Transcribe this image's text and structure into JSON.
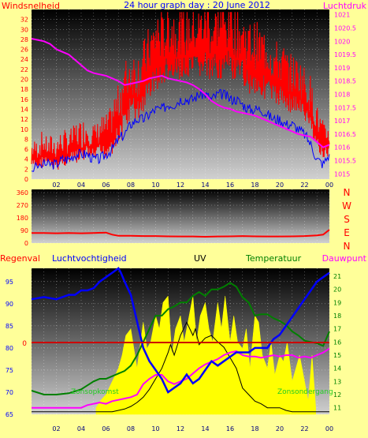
{
  "title": "24 hour graph day : 20 June 2012",
  "colors": {
    "background": "#ffff99",
    "red": "#ff0000",
    "blue": "#0000ff",
    "magenta": "#ff00ff",
    "green": "#008000",
    "yellow": "#ffff00",
    "black": "#000000"
  },
  "x_ticks": [
    "02",
    "04",
    "06",
    "08",
    "10",
    "12",
    "14",
    "16",
    "18",
    "20",
    "22",
    "00"
  ],
  "chart_data": [
    {
      "type": "line",
      "title": "24 hour graph day : 20 June 2012",
      "left_label": "Windsnelheid",
      "right_label": "Luchtdruk",
      "left_ticks": [
        "0",
        "2",
        "4",
        "6",
        "8",
        "10",
        "12",
        "14",
        "16",
        "18",
        "20",
        "22",
        "24",
        "26",
        "28",
        "30",
        "32"
      ],
      "right_ticks": [
        "1015",
        "1015.5",
        "1016",
        "1016.5",
        "1017",
        "1017.5",
        "1018",
        "1018.5",
        "1019",
        "1019.5",
        "1020",
        "1020.5",
        "1021"
      ],
      "ylim_left": [
        0,
        34
      ],
      "ylim_right": [
        1014.8,
        1021.2
      ],
      "xlim": [
        0,
        24
      ],
      "grid": true,
      "series": [
        {
          "color_key": "red",
          "axis": "left",
          "x": [
            0,
            0.5,
            1,
            1.5,
            2,
            2.5,
            3,
            3.5,
            4,
            4.5,
            5,
            5.5,
            6,
            6.5,
            7,
            7.5,
            8,
            8.5,
            9,
            9.5,
            10,
            10.5,
            11,
            11.5,
            12,
            12.5,
            13,
            13.5,
            14,
            14.5,
            15,
            15.5,
            16,
            16.5,
            17,
            17.5,
            18,
            18.5,
            19,
            19.5,
            20,
            20.5,
            21,
            21.5,
            22,
            22.5,
            23,
            23.5,
            24
          ],
          "y": [
            4,
            4,
            5,
            4,
            4,
            5,
            5,
            6,
            6,
            7,
            6,
            7,
            7,
            9,
            11,
            14,
            17,
            16,
            18,
            21,
            23,
            23,
            25,
            24,
            25,
            24,
            25,
            25,
            26,
            24,
            26,
            25,
            26,
            24,
            24,
            22,
            22,
            21,
            21,
            19,
            19,
            18,
            17,
            17,
            15,
            13,
            9,
            6,
            7
          ],
          "spread": [
            4,
            5,
            4,
            5,
            5,
            5,
            5,
            6,
            6,
            6,
            5,
            6,
            6,
            8,
            10,
            10,
            10,
            10,
            10,
            10,
            12,
            10,
            12,
            10,
            10,
            11,
            10,
            10,
            12,
            10,
            12,
            10,
            12,
            10,
            10,
            10,
            10,
            10,
            10,
            9,
            9,
            8,
            8,
            8,
            8,
            7,
            6,
            5,
            5
          ]
        },
        {
          "color_key": "blue",
          "axis": "left",
          "x": [
            0,
            1,
            1.5,
            2,
            2.5,
            3,
            3.5,
            4,
            4.5,
            5,
            5.5,
            6,
            6.5,
            7,
            7.5,
            8,
            8.5,
            9,
            9.5,
            10,
            10.5,
            11,
            11.5,
            12,
            12.5,
            13,
            13.5,
            14,
            14.5,
            15,
            15.5,
            16,
            16.5,
            17,
            17.5,
            18,
            18.5,
            19,
            19.5,
            20,
            20.5,
            21,
            21.5,
            22,
            22.5,
            23,
            23.5,
            24
          ],
          "y": [
            2,
            3,
            3,
            3,
            4,
            4,
            5,
            5,
            5,
            4,
            4,
            5,
            6,
            8,
            9,
            11,
            12,
            12,
            13,
            14,
            14,
            15,
            15,
            16,
            16,
            16,
            17,
            17,
            16,
            17,
            17,
            16,
            16,
            15,
            14,
            14,
            14,
            13,
            12,
            12,
            11,
            11,
            10,
            9,
            7,
            4,
            3,
            5
          ]
        },
        {
          "color_key": "magenta",
          "axis": "right",
          "x": [
            0,
            0.5,
            1,
            1.5,
            2,
            2.5,
            3,
            3.5,
            4,
            4.5,
            5,
            5.5,
            6,
            6.5,
            7,
            7.5,
            8,
            8.5,
            9,
            9.5,
            10,
            10.5,
            11,
            11.5,
            12,
            12.5,
            13,
            13.5,
            14,
            14.5,
            15,
            15.5,
            16,
            16.5,
            17,
            17.5,
            18,
            18.5,
            19,
            19.5,
            20,
            20.5,
            21,
            21.5,
            22,
            22.5,
            23,
            23.5,
            24
          ],
          "y": [
            1020.1,
            1020.05,
            1020.0,
            1019.9,
            1019.7,
            1019.6,
            1019.5,
            1019.3,
            1019.1,
            1018.9,
            1018.8,
            1018.75,
            1018.7,
            1018.6,
            1018.5,
            1018.35,
            1018.4,
            1018.45,
            1018.5,
            1018.6,
            1018.65,
            1018.7,
            1018.6,
            1018.55,
            1018.5,
            1018.45,
            1018.35,
            1018.2,
            1018.0,
            1017.75,
            1017.6,
            1017.5,
            1017.45,
            1017.35,
            1017.3,
            1017.25,
            1017.2,
            1017.1,
            1017.0,
            1016.9,
            1016.8,
            1016.7,
            1016.6,
            1016.5,
            1016.45,
            1016.4,
            1016.2,
            1016.0,
            1016.1
          ]
        }
      ]
    },
    {
      "type": "line",
      "left_ticks": [
        "0",
        "90",
        "180",
        "270",
        "360"
      ],
      "ylim": [
        0,
        360
      ],
      "xlim": [
        0,
        24
      ],
      "compass_labels": [
        "N",
        "W",
        "S",
        "E",
        "N"
      ],
      "series": [
        {
          "color_key": "red",
          "x": [
            0,
            1,
            2,
            3,
            4,
            5,
            6,
            6.5,
            7,
            8,
            9,
            10,
            11,
            12,
            13,
            14,
            15,
            16,
            17,
            18,
            19,
            20,
            21,
            22,
            23,
            23.5,
            24
          ],
          "y": [
            72,
            72,
            70,
            72,
            70,
            72,
            75,
            60,
            52,
            52,
            50,
            50,
            48,
            47,
            47,
            45,
            47,
            48,
            50,
            48,
            47,
            47,
            48,
            50,
            55,
            60,
            95
          ]
        }
      ]
    },
    {
      "type": "area",
      "top_labels": [
        "Regenval",
        "Luchtvochtigheid",
        "UV",
        "Temperatuur",
        "Dauwpunt"
      ],
      "left_ticks": [
        "65",
        "70",
        "75",
        "80",
        "85",
        "90",
        "95"
      ],
      "right_ticks": [
        "11",
        "12",
        "13",
        "14",
        "15",
        "16",
        "17",
        "18",
        "19",
        "20",
        "21"
      ],
      "rain_zero_label": "0",
      "ylim_left": [
        65,
        98
      ],
      "ylim_right": [
        10.5,
        21.6
      ],
      "xlim": [
        0,
        24
      ],
      "annotations": [
        "Zonsopkomst",
        "Zonsondergang"
      ],
      "series": [
        {
          "color_key": "yellow",
          "axis": "right",
          "x": [
            5.2,
            5.6,
            6,
            6.5,
            7,
            7.3,
            7.6,
            8,
            8.5,
            9,
            9.3,
            9.6,
            10,
            10.3,
            10.6,
            11,
            11.3,
            11.6,
            12,
            12.3,
            12.6,
            13,
            13.3,
            13.6,
            14,
            14.3,
            14.6,
            15,
            15.3,
            15.6,
            16,
            16.3,
            16.6,
            17,
            17.3,
            17.6,
            18,
            18.3,
            18.6,
            19,
            19.3,
            19.6,
            20,
            20.3,
            20.6,
            21,
            21.3,
            21.6,
            22,
            22.3,
            22.6,
            22.9
          ],
          "y": [
            11,
            11.6,
            12,
            13,
            14,
            15,
            16.5,
            17,
            14,
            17.5,
            15.5,
            16,
            18,
            17,
            19,
            19.5,
            15,
            17,
            18,
            16,
            17.5,
            19.5,
            16,
            18,
            19,
            17,
            16,
            19,
            17,
            19.5,
            16,
            18,
            16,
            15.5,
            17,
            14,
            18,
            17.5,
            15,
            14,
            16,
            13.5,
            15,
            14.5,
            16,
            13,
            14,
            15,
            13,
            11.5,
            15,
            11
          ]
        },
        {
          "color_key": "blue",
          "axis": "left",
          "x": [
            0,
            1,
            2,
            3,
            3.5,
            4,
            4.5,
            5,
            5.5,
            6,
            6.5,
            7,
            7.2,
            7.5,
            8,
            8.5,
            9,
            9.5,
            10,
            10.5,
            11,
            11.5,
            12,
            12.5,
            13,
            13.5,
            14,
            14.5,
            15,
            15.5,
            16,
            16.5,
            17,
            17.5,
            18,
            18.5,
            19,
            19.5,
            20,
            20.5,
            21,
            21.5,
            22,
            22.5,
            23,
            23.5,
            24
          ],
          "y": [
            91,
            91.5,
            91,
            92,
            92,
            93,
            93,
            93.5,
            95,
            96,
            97,
            98,
            97,
            95,
            92,
            86,
            80,
            77,
            75,
            73,
            70,
            71,
            72,
            74,
            72,
            73,
            75,
            77,
            76,
            77,
            78,
            79,
            79,
            79,
            80,
            80,
            80,
            82,
            83,
            85,
            87,
            89,
            91,
            93,
            95,
            96,
            97
          ]
        },
        {
          "color_key": "green",
          "axis": "right",
          "x": [
            0,
            1,
            2,
            3,
            4,
            4.5,
            5,
            5.5,
            6,
            6.5,
            7,
            7.5,
            8,
            8.5,
            9,
            9.5,
            10,
            10.5,
            11,
            11.5,
            12,
            12.5,
            13,
            13.5,
            14,
            14.5,
            15,
            15.5,
            16,
            16.5,
            17,
            17.5,
            18,
            18.5,
            19,
            19.5,
            20,
            20.5,
            21,
            21.5,
            22,
            22.5,
            23,
            23.5,
            24
          ],
          "y": [
            12.3,
            12,
            12,
            12.1,
            12.4,
            12.7,
            13,
            13.2,
            13.2,
            13.4,
            13.6,
            13.8,
            14.2,
            15,
            16,
            17,
            18,
            18,
            18.5,
            18.7,
            19,
            19,
            19.5,
            19.8,
            19.5,
            20,
            20,
            20.2,
            20.5,
            20.2,
            19.4,
            19,
            18,
            18.1,
            18.1,
            17.8,
            17.6,
            17.3,
            16.8,
            16.5,
            16.1,
            16,
            15.9,
            15.7,
            16.8
          ]
        },
        {
          "color_key": "magenta",
          "axis": "right",
          "x": [
            0,
            1,
            2,
            3,
            4,
            4.5,
            5,
            5.5,
            6,
            6.5,
            7,
            7.5,
            8,
            8.5,
            9,
            9.5,
            10,
            10.5,
            11,
            11.5,
            12,
            12.5,
            13,
            13.5,
            14,
            14.5,
            15,
            15.5,
            16,
            16.5,
            17,
            17.5,
            18,
            18.5,
            19,
            19.5,
            20,
            20.5,
            21,
            21.5,
            22,
            22.5,
            23,
            23.5,
            24
          ],
          "y": [
            11,
            11,
            11,
            11,
            11,
            11.2,
            11.3,
            11.4,
            11.3,
            11.5,
            11.6,
            11.7,
            11.8,
            12,
            12.8,
            13.2,
            13.5,
            13.5,
            13,
            12.8,
            13,
            13.2,
            13.6,
            14,
            14.3,
            14.5,
            14.7,
            15,
            15.2,
            15.3,
            15,
            14.9,
            14.9,
            14.8,
            14.9,
            15,
            14.9,
            15,
            15,
            14.8,
            14.9,
            14.8,
            15,
            15.2,
            15.5
          ]
        },
        {
          "color_key": "black",
          "axis": "right",
          "x": [
            0,
            5,
            5.5,
            6,
            6.5,
            7,
            7.5,
            8,
            8.5,
            9,
            9.5,
            10,
            10.5,
            11,
            11.2,
            11.5,
            12,
            12.5,
            13,
            13.2,
            13.5,
            14,
            14.5,
            15,
            15.5,
            16,
            16.5,
            17,
            17.5,
            18,
            18.5,
            19,
            19.5,
            20,
            20.5,
            21,
            24
          ],
          "y": [
            10.7,
            10.7,
            10.7,
            10.7,
            10.7,
            10.8,
            10.9,
            11.1,
            11.4,
            11.8,
            12.4,
            13.2,
            14,
            15.2,
            15.8,
            15,
            16.5,
            17.5,
            16.5,
            17,
            15.8,
            16.3,
            16.5,
            16,
            15.6,
            14.8,
            14,
            12.5,
            12,
            11.5,
            11.3,
            11,
            11,
            11,
            10.8,
            10.7,
            10.7
          ]
        }
      ]
    }
  ]
}
